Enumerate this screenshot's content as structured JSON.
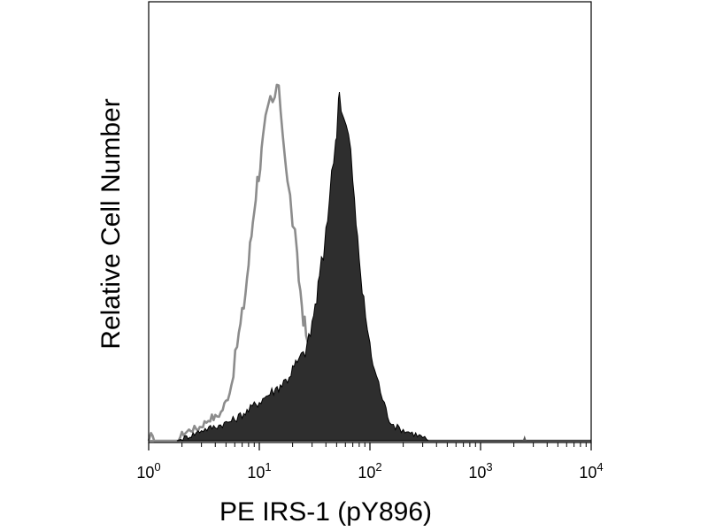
{
  "chart_data": {
    "type": "area",
    "xscale": "log",
    "xlim": [
      1,
      10000
    ],
    "ylim": [
      0,
      100
    ],
    "grid": false,
    "legend": "none",
    "xlabel": "PE IRS-1 (pY896)",
    "ylabel": "Relative Cell Number",
    "xticks": [
      {
        "value": 1,
        "base": "10",
        "exp": "0"
      },
      {
        "value": 10,
        "base": "10",
        "exp": "1"
      },
      {
        "value": 100,
        "base": "10",
        "exp": "2"
      },
      {
        "value": 1000,
        "base": "10",
        "exp": "3"
      },
      {
        "value": 10000,
        "base": "10",
        "exp": "4"
      }
    ],
    "series": [
      {
        "style": "outline",
        "color": "#8c8c8c",
        "points": [
          [
            1,
            0
          ],
          [
            1.05,
            1.5
          ],
          [
            1.12,
            0
          ],
          [
            1.8,
            0
          ],
          [
            2.0,
            1.8
          ],
          [
            2.4,
            3.2
          ],
          [
            2.8,
            3.5
          ],
          [
            3.2,
            5.0
          ],
          [
            3.6,
            6.5
          ],
          [
            4.0,
            6.5
          ],
          [
            4.5,
            8.0
          ],
          [
            5.0,
            11.0
          ],
          [
            5.6,
            16.0
          ],
          [
            6.3,
            27.0
          ],
          [
            7.0,
            35.0
          ],
          [
            7.5,
            42.0
          ],
          [
            8.0,
            50.0
          ],
          [
            8.5,
            58.0
          ],
          [
            9.0,
            66.0
          ],
          [
            9.6,
            73.0
          ],
          [
            10.2,
            78.0
          ],
          [
            10.8,
            84.0
          ],
          [
            11.4,
            89.0
          ],
          [
            12.0,
            92.0
          ],
          [
            12.6,
            95.0
          ],
          [
            13.2,
            94.0
          ],
          [
            13.8,
            96.0
          ],
          [
            14.4,
            100.0
          ],
          [
            15.0,
            97.0
          ],
          [
            15.6,
            94.0
          ],
          [
            16.3,
            87.0
          ],
          [
            17.0,
            82.0
          ],
          [
            18.0,
            72.0
          ],
          [
            19.0,
            68.0
          ],
          [
            20.0,
            62.0
          ],
          [
            21.0,
            57.0
          ],
          [
            22.0,
            50.0
          ],
          [
            23.5,
            42.0
          ],
          [
            25.0,
            35.0
          ],
          [
            26.5,
            30.0
          ],
          [
            28.0,
            25.0
          ],
          [
            30.0,
            18.0
          ],
          [
            32.0,
            11.0
          ],
          [
            34.0,
            7.0
          ],
          [
            37.0,
            4.0
          ],
          [
            40.0,
            3.0
          ],
          [
            45.0,
            2.5
          ],
          [
            55.0,
            2.0
          ],
          [
            70.0,
            2.0
          ],
          [
            100.0,
            1.8
          ],
          [
            150.0,
            1.5
          ],
          [
            200.0,
            0.8
          ],
          [
            250.0,
            0.3
          ],
          [
            300.0,
            0
          ],
          [
            10000,
            0
          ]
        ]
      },
      {
        "style": "filled",
        "color": "#2e2e2e",
        "points": [
          [
            1.8,
            0
          ],
          [
            2.2,
            1.0
          ],
          [
            2.6,
            2.0
          ],
          [
            3.0,
            3.0
          ],
          [
            3.5,
            3.5
          ],
          [
            4.0,
            4.0
          ],
          [
            5.0,
            5.0
          ],
          [
            6.0,
            6.0
          ],
          [
            7.0,
            7.5
          ],
          [
            8.0,
            8.5
          ],
          [
            9.0,
            10.0
          ],
          [
            10.0,
            11.0
          ],
          [
            12.0,
            13.0
          ],
          [
            14.0,
            14.5
          ],
          [
            16.0,
            16.0
          ],
          [
            18.0,
            17.5
          ],
          [
            20.0,
            20.0
          ],
          [
            22.0,
            22.0
          ],
          [
            25.0,
            24.0
          ],
          [
            28.0,
            28.0
          ],
          [
            30.0,
            33.0
          ],
          [
            33.0,
            40.0
          ],
          [
            35.0,
            46.0
          ],
          [
            38.0,
            52.0
          ],
          [
            40.0,
            60.0
          ],
          [
            43.0,
            68.0
          ],
          [
            45.0,
            74.0
          ],
          [
            47.0,
            80.0
          ],
          [
            49.0,
            84.0
          ],
          [
            50.0,
            88.0
          ],
          [
            52.0,
            96.0
          ],
          [
            53.0,
            100.0
          ],
          [
            55.0,
            93.0
          ],
          [
            58.0,
            90.0
          ],
          [
            61.0,
            88.0
          ],
          [
            64.0,
            86.0
          ],
          [
            67.0,
            80.0
          ],
          [
            70.0,
            74.0
          ],
          [
            75.0,
            60.0
          ],
          [
            80.0,
            52.0
          ],
          [
            88.0,
            38.0
          ],
          [
            95.0,
            32.0
          ],
          [
            100.0,
            26.0
          ],
          [
            110.0,
            20.0
          ],
          [
            120.0,
            16.0
          ],
          [
            135.0,
            10.0
          ],
          [
            150.0,
            6.0
          ],
          [
            170.0,
            4.0
          ],
          [
            200.0,
            3.0
          ],
          [
            250.0,
            2.0
          ],
          [
            300.0,
            1.0
          ],
          [
            340.0,
            0
          ],
          [
            10000,
            0
          ]
        ]
      }
    ],
    "annotations": [
      {
        "x": 2500,
        "y": 1.5,
        "shape": "spike"
      }
    ]
  }
}
